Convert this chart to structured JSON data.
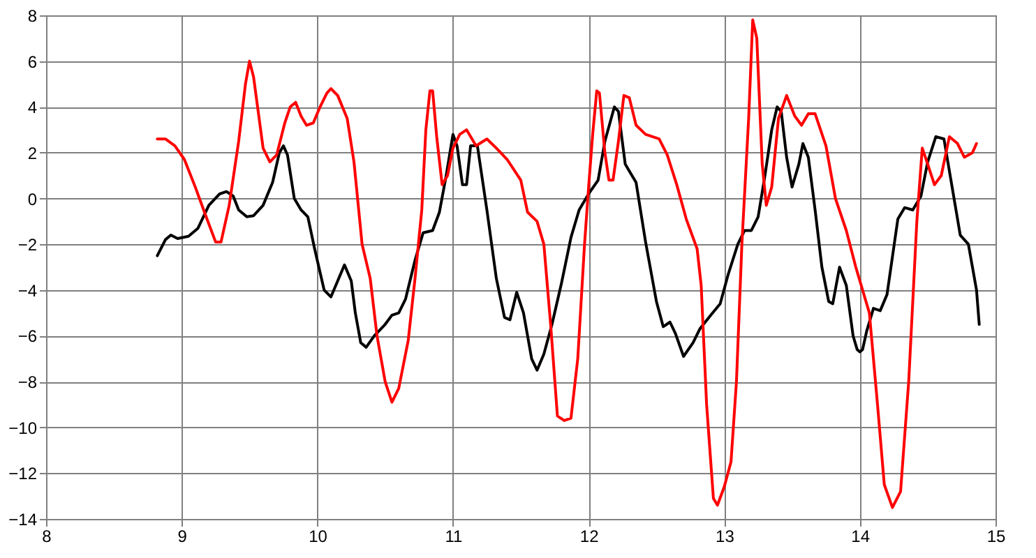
{
  "chart_data": {
    "type": "line",
    "xlim": [
      8,
      15
    ],
    "xticks": [
      8,
      9,
      10,
      11,
      12,
      13,
      14,
      15
    ],
    "ylim": [
      -14,
      8
    ],
    "yticks": [
      -14,
      -12,
      -10,
      -8,
      -6,
      -4,
      -2,
      0,
      2,
      4,
      6,
      8
    ],
    "grid": true,
    "legend": false,
    "marker": "none",
    "line_style": "solid",
    "series": [
      {
        "color": "#000000",
        "x": [
          8.82,
          8.88,
          8.92,
          8.97,
          9.05,
          9.12,
          9.2,
          9.28,
          9.33,
          9.38,
          9.42,
          9.48,
          9.53,
          9.6,
          9.67,
          9.72,
          9.75,
          9.78,
          9.83,
          9.88,
          9.93,
          9.98,
          10.05,
          10.1,
          10.15,
          10.2,
          10.25,
          10.28,
          10.32,
          10.36,
          10.42,
          10.5,
          10.55,
          10.6,
          10.65,
          10.72,
          10.78,
          10.85,
          10.9,
          10.95,
          11.0,
          11.03,
          11.07,
          11.1,
          11.13,
          11.18,
          11.25,
          11.32,
          11.38,
          11.42,
          11.47,
          11.52,
          11.58,
          11.62,
          11.67,
          11.73,
          11.8,
          11.87,
          11.93,
          12.0,
          12.07,
          12.12,
          12.19,
          12.22,
          12.27,
          12.3,
          12.35,
          12.42,
          12.5,
          12.55,
          12.6,
          12.64,
          12.7,
          12.77,
          12.82,
          12.9,
          12.97,
          13.03,
          13.1,
          13.15,
          13.2,
          13.25,
          13.3,
          13.35,
          13.39,
          13.42,
          13.46,
          13.5,
          13.55,
          13.58,
          13.62,
          13.67,
          13.72,
          13.77,
          13.8,
          13.85,
          13.9,
          13.95,
          13.98,
          14.0,
          14.02,
          14.05,
          14.1,
          14.15,
          14.2,
          14.28,
          14.33,
          14.39,
          14.45,
          14.5,
          14.56,
          14.62,
          14.68,
          14.74,
          14.8,
          14.86,
          14.88
        ],
        "values": [
          -2.5,
          -1.8,
          -1.6,
          -1.75,
          -1.65,
          -1.3,
          -0.3,
          0.2,
          0.3,
          0.1,
          -0.5,
          -0.8,
          -0.75,
          -0.3,
          0.7,
          2.0,
          2.3,
          1.9,
          0,
          -0.5,
          -0.8,
          -2.2,
          -4.0,
          -4.3,
          -3.6,
          -2.9,
          -3.6,
          -5,
          -6.3,
          -6.5,
          -6.0,
          -5.5,
          -5.1,
          -5.0,
          -4.4,
          -2.7,
          -1.5,
          -1.4,
          -0.6,
          1,
          2.8,
          2.3,
          0.6,
          0.6,
          2.3,
          2.3,
          -0.5,
          -3.5,
          -5.2,
          -5.3,
          -4.1,
          -5.0,
          -7.0,
          -7.5,
          -6.8,
          -5.5,
          -3.7,
          -1.7,
          -0.5,
          0.2,
          0.8,
          2.5,
          4.0,
          3.8,
          1.5,
          1.2,
          0.7,
          -1.9,
          -4.5,
          -5.6,
          -5.4,
          -5.9,
          -6.9,
          -6.3,
          -5.7,
          -5.1,
          -4.6,
          -3.3,
          -2.0,
          -1.4,
          -1.4,
          -0.8,
          1.0,
          3.0,
          4.0,
          3.8,
          1.8,
          0.5,
          1.5,
          2.4,
          1.8,
          -0.5,
          -3.0,
          -4.5,
          -4.6,
          -3.0,
          -3.8,
          -6.0,
          -6.6,
          -6.7,
          -6.6,
          -5.8,
          -4.8,
          -4.9,
          -4.2,
          -0.9,
          -0.4,
          -0.5,
          0.1,
          1.6,
          2.7,
          2.6,
          0.5,
          -1.6,
          -2.0,
          -4.0,
          -5.5
        ]
      },
      {
        "color": "#ff0000",
        "x": [
          8.82,
          8.88,
          8.95,
          9.02,
          9.1,
          9.18,
          9.25,
          9.29,
          9.35,
          9.42,
          9.47,
          9.5,
          9.53,
          9.6,
          9.65,
          9.7,
          9.76,
          9.8,
          9.84,
          9.88,
          9.92,
          9.97,
          10.02,
          10.07,
          10.1,
          10.15,
          10.22,
          10.27,
          10.33,
          10.39,
          10.44,
          10.5,
          10.55,
          10.6,
          10.67,
          10.72,
          10.77,
          10.8,
          10.83,
          10.85,
          10.88,
          10.92,
          10.96,
          11.0,
          11.05,
          11.1,
          11.17,
          11.25,
          11.32,
          11.4,
          11.5,
          11.55,
          11.62,
          11.67,
          11.72,
          11.77,
          11.82,
          11.87,
          11.92,
          11.97,
          12.0,
          12.03,
          12.06,
          12.08,
          12.12,
          12.15,
          12.18,
          12.22,
          12.26,
          12.3,
          12.35,
          12.42,
          12.52,
          12.58,
          12.65,
          12.72,
          12.8,
          12.83,
          12.87,
          12.92,
          12.95,
          13.0,
          13.05,
          13.09,
          13.13,
          13.18,
          13.21,
          13.24,
          13.28,
          13.31,
          13.35,
          13.4,
          13.46,
          13.52,
          13.57,
          13.62,
          13.67,
          13.75,
          13.82,
          13.9,
          13.97,
          14.07,
          14.13,
          14.18,
          14.24,
          14.3,
          14.36,
          14.42,
          14.46,
          14.5,
          14.55,
          14.6,
          14.66,
          14.72,
          14.77,
          14.83,
          14.86
        ],
        "values": [
          2.6,
          2.6,
          2.3,
          1.7,
          0.5,
          -0.8,
          -1.9,
          -1.9,
          -0.3,
          2.5,
          5.0,
          6.0,
          5.3,
          2.2,
          1.6,
          1.9,
          3.3,
          4.0,
          4.2,
          3.6,
          3.2,
          3.3,
          4.0,
          4.6,
          4.8,
          4.5,
          3.5,
          1.6,
          -2.0,
          -3.5,
          -6.0,
          -8.0,
          -8.9,
          -8.3,
          -6.2,
          -3.5,
          -0.5,
          3.0,
          4.7,
          4.7,
          2.7,
          0.6,
          1.0,
          2.2,
          2.8,
          3.0,
          2.3,
          2.6,
          2.2,
          1.7,
          0.8,
          -0.6,
          -1.0,
          -2.0,
          -5.5,
          -9.5,
          -9.7,
          -9.6,
          -7.0,
          -2.0,
          0.5,
          2.8,
          4.7,
          4.6,
          2.0,
          0.8,
          0.8,
          2.5,
          4.5,
          4.4,
          3.2,
          2.8,
          2.6,
          1.9,
          0.6,
          -0.9,
          -2.2,
          -3.8,
          -9.0,
          -13.1,
          -13.4,
          -12.6,
          -11.5,
          -8.0,
          -2.0,
          3.5,
          7.8,
          7.0,
          1.5,
          -0.3,
          0.5,
          3.5,
          4.5,
          3.6,
          3.2,
          3.7,
          3.7,
          2.3,
          0.0,
          -1.4,
          -3.0,
          -5.0,
          -9.0,
          -12.5,
          -13.5,
          -12.8,
          -8.0,
          -1.0,
          2.2,
          1.5,
          0.6,
          1.0,
          2.7,
          2.4,
          1.8,
          2.0,
          2.4
        ]
      }
    ]
  }
}
